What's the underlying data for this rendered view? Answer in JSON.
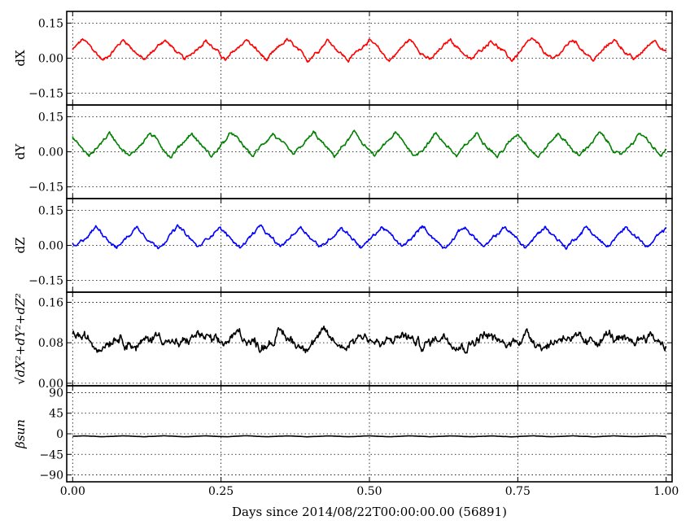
{
  "figure": {
    "xlabel": "Days since 2014/08/22T00:00:00.00 (56891)",
    "x_ticks": [
      "0.00",
      "0.25",
      "0.50",
      "0.75",
      "1.00"
    ]
  },
  "chart_data": [
    {
      "type": "line",
      "ylabel": "dX",
      "series": [
        {
          "color": "#ff0000",
          "period_days": 0.0688,
          "mean": 0.035,
          "amplitude": 0.045,
          "noise": 0.008,
          "phase": 0.0
        }
      ],
      "xlim": [
        -0.01,
        1.01
      ],
      "ylim": [
        -0.2,
        0.2
      ],
      "y_ticks": [
        "0.15",
        "0.00",
        "−0.15"
      ],
      "y_tick_values": [
        0.15,
        0.0,
        -0.15
      ],
      "grid": true
    },
    {
      "type": "line",
      "ylabel": "dY",
      "series": [
        {
          "color": "#008000",
          "period_days": 0.0688,
          "mean": 0.03,
          "amplitude": 0.05,
          "noise": 0.008,
          "phase": 2.2
        }
      ],
      "xlim": [
        -0.01,
        1.01
      ],
      "ylim": [
        -0.2,
        0.2
      ],
      "y_ticks": [
        "0.15",
        "0.00",
        "−0.15"
      ],
      "y_tick_values": [
        0.15,
        0.0,
        -0.15
      ],
      "grid": true
    },
    {
      "type": "line",
      "ylabel": "dZ",
      "series": [
        {
          "color": "#0000ff",
          "period_days": 0.0688,
          "mean": 0.035,
          "amplitude": 0.045,
          "noise": 0.008,
          "phase": 4.2
        }
      ],
      "xlim": [
        -0.01,
        1.01
      ],
      "ylim": [
        -0.2,
        0.2
      ],
      "y_ticks": [
        "0.15",
        "0.00",
        "−0.15"
      ],
      "y_tick_values": [
        0.15,
        0.0,
        -0.15
      ],
      "grid": true
    },
    {
      "type": "line",
      "ylabel": "√dX²+dY²+dZ²",
      "series": [
        {
          "color": "#000000",
          "period_days": 0.0688,
          "mean": 0.085,
          "amplitude": 0.012,
          "noise": 0.01,
          "phase": 1.0
        }
      ],
      "xlim": [
        -0.01,
        1.01
      ],
      "ylim": [
        -0.005,
        0.18
      ],
      "y_ticks": [
        "0.16",
        "0.08",
        "0.00"
      ],
      "y_tick_values": [
        0.16,
        0.08,
        0.0
      ],
      "grid": true
    },
    {
      "type": "line",
      "ylabel": "βsun",
      "series": [
        {
          "color": "#000000",
          "period_days": 0.0688,
          "mean": -5.5,
          "amplitude": 1.0,
          "noise": 0.2,
          "phase": 0.0
        }
      ],
      "xlim": [
        -0.01,
        1.01
      ],
      "ylim": [
        -105,
        105
      ],
      "y_ticks": [
        "90",
        "45",
        "0",
        "−45",
        "−90"
      ],
      "y_tick_values": [
        90,
        45,
        0,
        -45,
        -90
      ],
      "grid": true
    }
  ]
}
